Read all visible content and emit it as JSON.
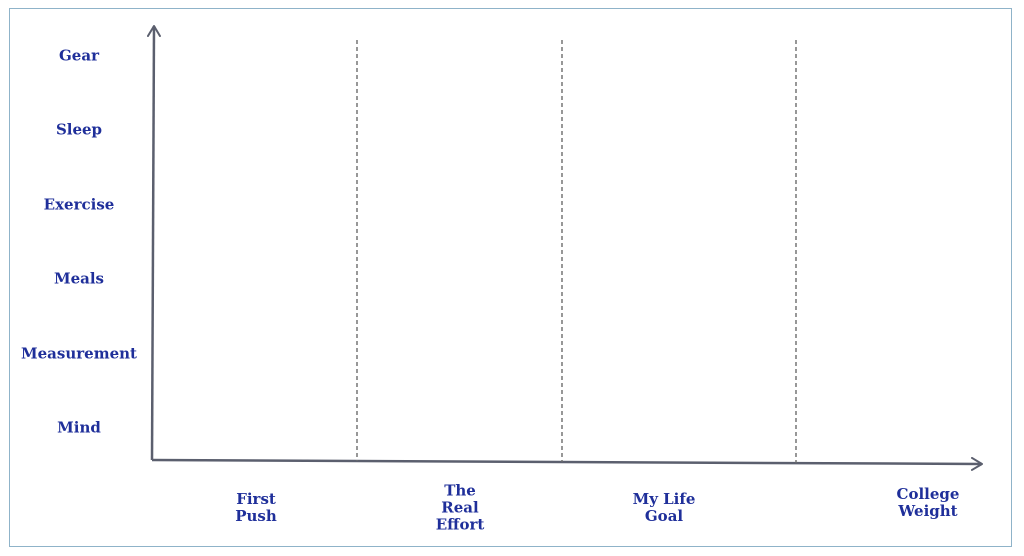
{
  "diagram": {
    "rows": [
      "Gear",
      "Sleep",
      "Exercise",
      "Meals",
      "Measurement",
      "Mind"
    ],
    "columns": [
      {
        "lines": [
          "First",
          "Push"
        ]
      },
      {
        "lines": [
          "The",
          "Real",
          "Effort"
        ]
      },
      {
        "lines": [
          "My Life",
          "Goal"
        ]
      },
      {
        "lines": [
          "College",
          "Weight"
        ]
      }
    ],
    "colors": {
      "label": "#1f2f9a",
      "axis": "#5b5f6e",
      "divider": "#6b6b6b",
      "frame": "#8fb3c9"
    }
  }
}
